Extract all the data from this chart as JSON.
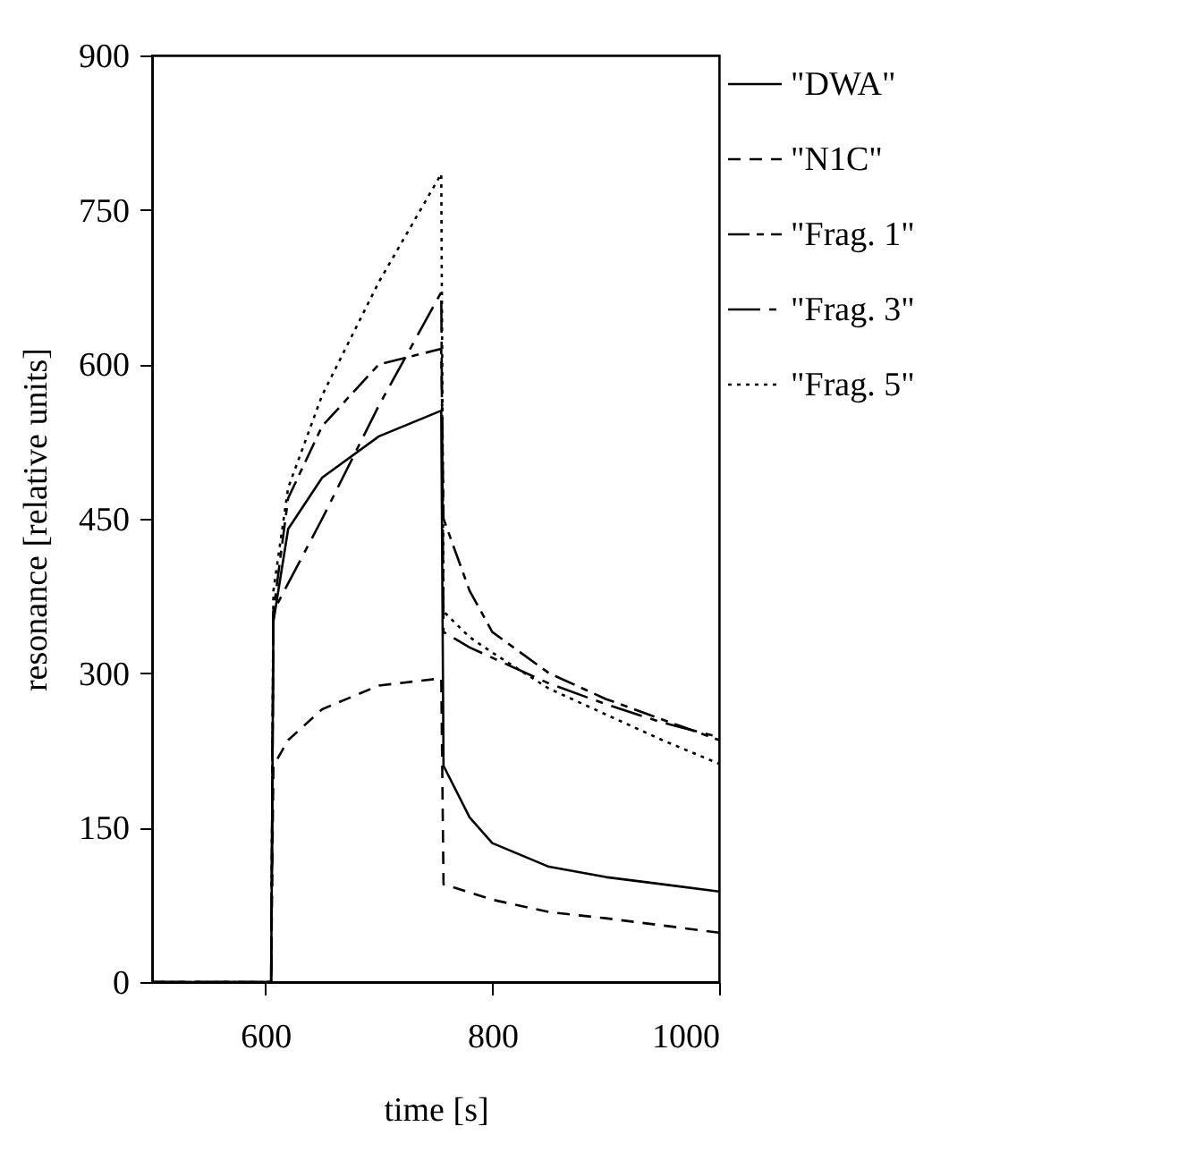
{
  "chart_data": {
    "type": "line",
    "xlabel": "time [s]",
    "ylabel": "resonance [relative units]",
    "xlim": [
      500,
      1000
    ],
    "xticks": [
      600,
      800,
      1000
    ],
    "ylim": [
      0,
      900
    ],
    "yticks": [
      0,
      150,
      300,
      450,
      600,
      750,
      900
    ],
    "grid": false,
    "legend": "right",
    "series": [
      {
        "name": "\"DWA\"",
        "color": "#000000",
        "line_style": "solid",
        "x": [
          500,
          605,
          607,
          620,
          650,
          700,
          755,
          757,
          780,
          800,
          850,
          900,
          950,
          1000
        ],
        "values": [
          0,
          0,
          350,
          440,
          490,
          530,
          555,
          210,
          160,
          135,
          112,
          102,
          95,
          88
        ]
      },
      {
        "name": "\"N1C\"",
        "color": "#000000",
        "line_style": "dashed",
        "x": [
          500,
          605,
          607,
          620,
          650,
          700,
          755,
          757,
          780,
          800,
          850,
          900,
          950,
          1000
        ],
        "values": [
          0,
          0,
          210,
          235,
          265,
          288,
          295,
          95,
          87,
          80,
          68,
          62,
          55,
          48
        ]
      },
      {
        "name": "\"Frag. 1\"",
        "color": "#000000",
        "line_style": "dashdot",
        "x": [
          500,
          605,
          607,
          620,
          650,
          700,
          755,
          757,
          780,
          800,
          850,
          900,
          950,
          1000
        ],
        "values": [
          0,
          0,
          360,
          470,
          540,
          600,
          615,
          450,
          380,
          340,
          300,
          275,
          255,
          235
        ]
      },
      {
        "name": "\"Frag. 3\"",
        "color": "#000000",
        "line_style": "longdashdot",
        "x": [
          500,
          605,
          607,
          650,
          700,
          755,
          757,
          780,
          800,
          850,
          900,
          950,
          1000
        ],
        "values": [
          0,
          0,
          360,
          450,
          560,
          670,
          340,
          325,
          315,
          290,
          270,
          252,
          238
        ]
      },
      {
        "name": "\"Frag. 5\"",
        "color": "#000000",
        "line_style": "dotted",
        "x": [
          500,
          605,
          607,
          620,
          650,
          700,
          755,
          757,
          780,
          800,
          850,
          900,
          950,
          1000
        ],
        "values": [
          0,
          0,
          380,
          480,
          570,
          680,
          785,
          360,
          335,
          320,
          285,
          260,
          235,
          212
        ]
      }
    ]
  }
}
